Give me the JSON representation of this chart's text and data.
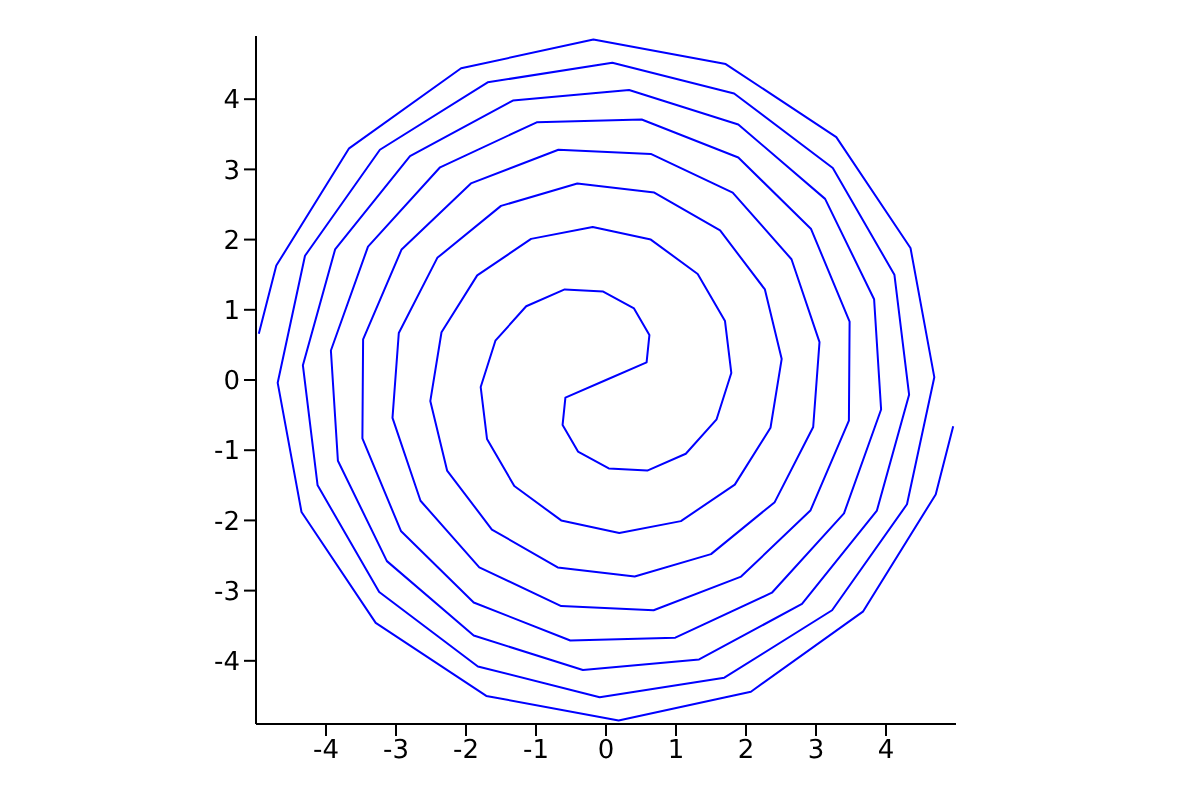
{
  "chart_data": {
    "type": "line",
    "color": "#0000ff",
    "marker": "none",
    "grid": false,
    "legend": false,
    "xlim": [
      -5,
      5
    ],
    "ylim": [
      -4.9,
      4.9
    ],
    "xticks": [
      -4,
      -3,
      -2,
      -1,
      0,
      1,
      2,
      3,
      4
    ],
    "yticks": [
      -4,
      -3,
      -2,
      -1,
      0,
      1,
      2,
      3,
      4
    ],
    "x": [
      -4.96,
      -4.71,
      -3.67,
      -2.07,
      -0.18,
      1.71,
      3.29,
      4.35,
      4.69,
      4.3,
      3.23,
      1.69,
      -0.09,
      -1.83,
      -3.24,
      -4.12,
      -4.33,
      -3.87,
      -2.8,
      -1.33,
      0.33,
      1.89,
      3.13,
      3.83,
      3.93,
      3.4,
      2.37,
      0.99,
      -0.51,
      -1.89,
      -2.93,
      -3.48,
      -3.47,
      -2.92,
      -1.93,
      -0.68,
      0.64,
      1.81,
      2.65,
      3.05,
      2.96,
      2.41,
      1.5,
      0.41,
      -0.69,
      -1.63,
      -2.27,
      -2.51,
      -2.35,
      -1.84,
      -1.07,
      -0.19,
      0.64,
      1.31,
      1.7,
      1.79,
      1.58,
      1.14,
      0.59,
      0.04,
      -0.4,
      -0.62,
      -0.58,
      0,
      0.58,
      0.62,
      0.4,
      -0.04,
      -0.59,
      -1.14,
      -1.58,
      -1.79,
      -1.7,
      -1.31,
      -0.64,
      0.19,
      1.07,
      1.84,
      2.35,
      2.51,
      2.27,
      1.63,
      0.69,
      -0.41,
      -1.5,
      -2.41,
      -2.96,
      -3.05,
      -2.65,
      -1.81,
      -0.64,
      0.68,
      1.93,
      2.92,
      3.47,
      3.48,
      2.93,
      1.89,
      0.51,
      -0.99,
      -2.37,
      -3.4,
      -3.93,
      -3.83,
      -3.13,
      -1.89,
      -0.33,
      1.33,
      2.8,
      3.87,
      4.33,
      4.12,
      3.24,
      1.83,
      0.09,
      -1.69,
      -3.23,
      -4.3,
      -4.69,
      -4.35,
      -3.29,
      -1.71,
      0.18,
      2.07,
      3.67,
      4.71,
      4.96
    ],
    "values": [
      0.66,
      1.63,
      3.3,
      4.44,
      4.85,
      4.5,
      3.46,
      1.88,
      0.04,
      -1.77,
      -3.28,
      -4.24,
      -4.52,
      -4.08,
      -3.02,
      -1.5,
      0.21,
      1.86,
      3.19,
      3.98,
      4.13,
      3.64,
      2.58,
      1.15,
      -0.42,
      -1.9,
      -3.03,
      -3.67,
      -3.71,
      -3.17,
      -2.15,
      -0.83,
      0.58,
      1.86,
      2.8,
      3.28,
      3.22,
      2.67,
      1.72,
      0.54,
      -0.67,
      -1.74,
      -2.48,
      -2.8,
      -2.67,
      -2.13,
      -1.29,
      -0.3,
      0.68,
      1.49,
      2.01,
      2.18,
      2.0,
      1.51,
      0.84,
      0.1,
      -0.56,
      -1.05,
      -1.29,
      -1.26,
      -1.02,
      -0.64,
      -0.25,
      0,
      0.25,
      0.64,
      1.02,
      1.26,
      1.29,
      1.05,
      0.56,
      -0.1,
      -0.84,
      -1.51,
      -2.0,
      -2.18,
      -2.01,
      -1.49,
      -0.68,
      0.3,
      1.29,
      2.13,
      2.67,
      2.8,
      2.48,
      1.74,
      0.67,
      -0.54,
      -1.72,
      -2.67,
      -3.22,
      -3.28,
      -2.8,
      -1.86,
      -0.58,
      0.83,
      2.15,
      3.17,
      3.71,
      3.67,
      3.03,
      1.9,
      0.42,
      -1.15,
      -2.58,
      -3.64,
      -4.13,
      -3.98,
      -3.19,
      -1.86,
      -0.21,
      1.5,
      3.02,
      4.08,
      4.52,
      4.24,
      3.28,
      1.77,
      -0.04,
      -1.88,
      -3.46,
      -4.5,
      -4.85,
      -4.44,
      -3.3,
      -1.63,
      -0.66
    ]
  }
}
